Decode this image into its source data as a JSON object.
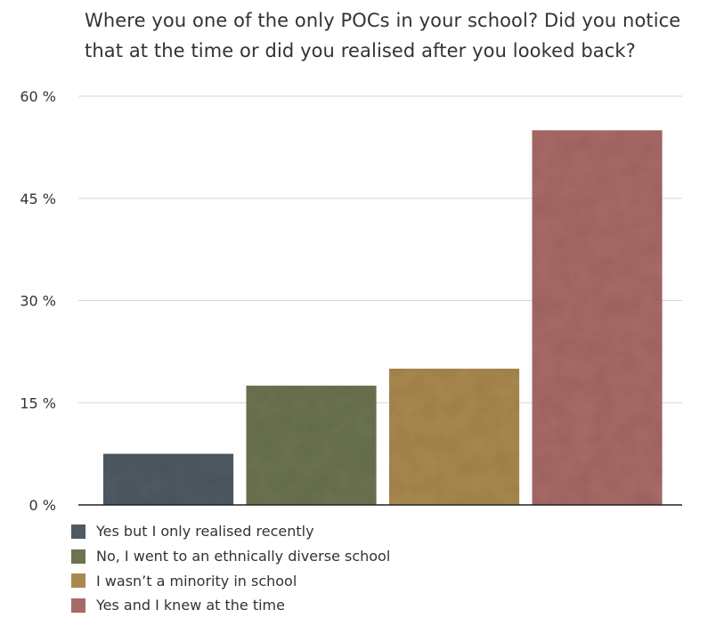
{
  "chart_data": {
    "type": "bar",
    "title": "Where you one of the only POCs in your school? Did you notice that at the time or did you realised after you looked back?",
    "categories": [
      "Yes but I only realised recently",
      "No, I went to an ethnically diverse school",
      "I wasn’t a minority in school",
      "Yes and I knew at the time"
    ],
    "values": [
      7.5,
      17.5,
      20,
      55
    ],
    "colors": [
      "#4f5a63",
      "#6b7350",
      "#a9894e",
      "#a86a67"
    ],
    "ylim": [
      0,
      60
    ],
    "y_ticks": [
      0,
      15,
      30,
      45,
      60
    ],
    "y_tick_labels": [
      "0 %",
      "15 %",
      "30 %",
      "45 %",
      "60 %"
    ],
    "grid": true,
    "legend_position": "bottom-left"
  }
}
